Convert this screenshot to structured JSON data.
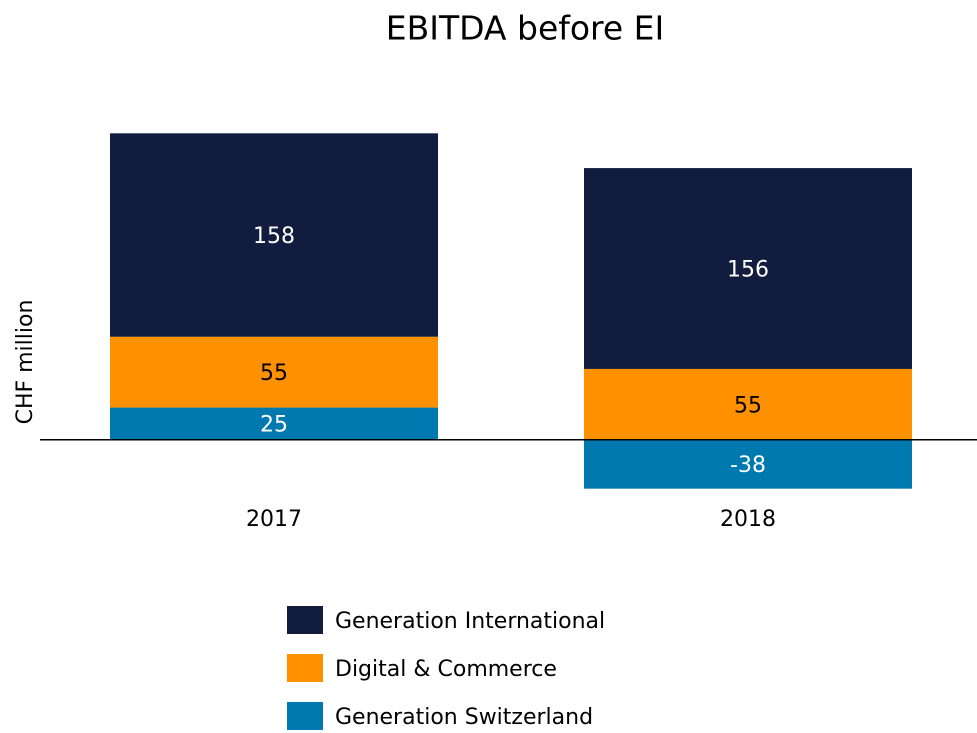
{
  "chart_data": {
    "type": "stacked_bar",
    "title": "EBITDA before EI",
    "y_label": "CHF million",
    "categories": [
      "2017",
      "2018"
    ],
    "series": [
      {
        "name": "Generation Switzerland",
        "color": "#0079b0",
        "label_color": "#ffffff",
        "values": [
          25,
          -38
        ]
      },
      {
        "name": "Digital & Commerce",
        "color": "#ff9100",
        "label_color": "#000000",
        "values": [
          55,
          55
        ]
      },
      {
        "name": "Generation International",
        "color": "#121c3e",
        "label_color": "#ffffff",
        "values": [
          158,
          156
        ]
      }
    ],
    "ylim": [
      -60,
      260
    ],
    "legend": "bottom"
  }
}
